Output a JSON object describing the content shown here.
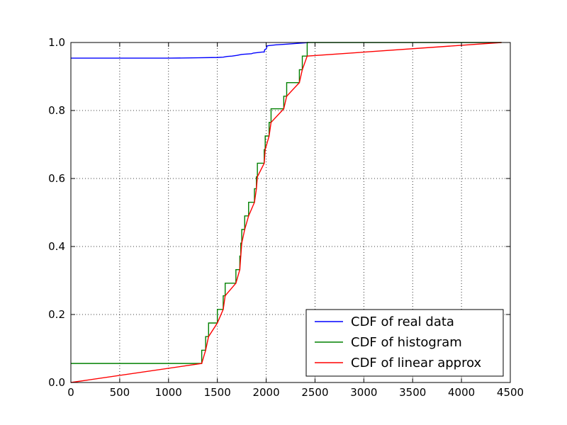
{
  "chart_data": {
    "type": "line",
    "xlim": [
      0,
      4500
    ],
    "ylim": [
      0.0,
      1.0
    ],
    "xticks": [
      "0",
      "500",
      "1000",
      "1500",
      "2000",
      "2500",
      "3000",
      "3500",
      "4000",
      "4500"
    ],
    "yticks": [
      "0.0",
      "0.2",
      "0.4",
      "0.6",
      "0.8",
      "1.0"
    ],
    "grid": true,
    "legend_position": "lower-right",
    "series": [
      {
        "name": "CDF of real data",
        "color": "#0000ff",
        "points": [
          [
            0,
            0.954
          ],
          [
            500,
            0.954
          ],
          [
            1000,
            0.954
          ],
          [
            1300,
            0.955
          ],
          [
            1500,
            0.956
          ],
          [
            1560,
            0.957
          ],
          [
            1600,
            0.959
          ],
          [
            1650,
            0.96
          ],
          [
            1700,
            0.962
          ],
          [
            1750,
            0.965
          ],
          [
            1800,
            0.966
          ],
          [
            1850,
            0.967
          ],
          [
            1870,
            0.969
          ],
          [
            1900,
            0.97
          ],
          [
            1930,
            0.971
          ],
          [
            1960,
            0.972
          ],
          [
            1980,
            0.972
          ],
          [
            1985,
            0.979
          ],
          [
            2000,
            0.981
          ],
          [
            2010,
            0.99
          ],
          [
            2030,
            0.991
          ],
          [
            2100,
            0.993
          ],
          [
            2200,
            0.995
          ],
          [
            2300,
            0.997
          ],
          [
            2400,
            0.999
          ],
          [
            2430,
            1.0
          ]
        ]
      },
      {
        "name": "CDF of histogram",
        "color": "#008000",
        "points": [
          [
            0,
            0.056
          ],
          [
            1340,
            0.056
          ],
          [
            1340,
            0.095
          ],
          [
            1380,
            0.095
          ],
          [
            1380,
            0.135
          ],
          [
            1410,
            0.135
          ],
          [
            1410,
            0.175
          ],
          [
            1500,
            0.175
          ],
          [
            1500,
            0.215
          ],
          [
            1560,
            0.215
          ],
          [
            1560,
            0.255
          ],
          [
            1580,
            0.255
          ],
          [
            1580,
            0.292
          ],
          [
            1690,
            0.292
          ],
          [
            1690,
            0.332
          ],
          [
            1730,
            0.332
          ],
          [
            1730,
            0.372
          ],
          [
            1740,
            0.372
          ],
          [
            1740,
            0.41
          ],
          [
            1750,
            0.41
          ],
          [
            1750,
            0.45
          ],
          [
            1780,
            0.45
          ],
          [
            1780,
            0.49
          ],
          [
            1820,
            0.49
          ],
          [
            1820,
            0.53
          ],
          [
            1880,
            0.53
          ],
          [
            1880,
            0.57
          ],
          [
            1900,
            0.57
          ],
          [
            1900,
            0.605
          ],
          [
            1910,
            0.605
          ],
          [
            1910,
            0.645
          ],
          [
            1980,
            0.645
          ],
          [
            1980,
            0.685
          ],
          [
            1990,
            0.685
          ],
          [
            1990,
            0.725
          ],
          [
            2030,
            0.725
          ],
          [
            2030,
            0.765
          ],
          [
            2050,
            0.765
          ],
          [
            2050,
            0.805
          ],
          [
            2180,
            0.805
          ],
          [
            2180,
            0.842
          ],
          [
            2210,
            0.842
          ],
          [
            2210,
            0.882
          ],
          [
            2340,
            0.882
          ],
          [
            2340,
            0.92
          ],
          [
            2370,
            0.92
          ],
          [
            2370,
            0.96
          ],
          [
            2420,
            0.96
          ],
          [
            2420,
            1.0
          ],
          [
            4410,
            1.0
          ]
        ]
      },
      {
        "name": "CDF of linear approx",
        "color": "#ff0000",
        "points": [
          [
            0,
            0.0
          ],
          [
            1340,
            0.056
          ],
          [
            1380,
            0.095
          ],
          [
            1410,
            0.135
          ],
          [
            1500,
            0.175
          ],
          [
            1560,
            0.215
          ],
          [
            1580,
            0.255
          ],
          [
            1690,
            0.292
          ],
          [
            1730,
            0.332
          ],
          [
            1740,
            0.372
          ],
          [
            1750,
            0.41
          ],
          [
            1780,
            0.45
          ],
          [
            1820,
            0.49
          ],
          [
            1880,
            0.53
          ],
          [
            1900,
            0.57
          ],
          [
            1910,
            0.605
          ],
          [
            1980,
            0.645
          ],
          [
            1990,
            0.685
          ],
          [
            2030,
            0.725
          ],
          [
            2050,
            0.765
          ],
          [
            2180,
            0.805
          ],
          [
            2210,
            0.842
          ],
          [
            2340,
            0.882
          ],
          [
            2370,
            0.92
          ],
          [
            2420,
            0.96
          ],
          [
            4410,
            1.0
          ]
        ]
      }
    ]
  }
}
